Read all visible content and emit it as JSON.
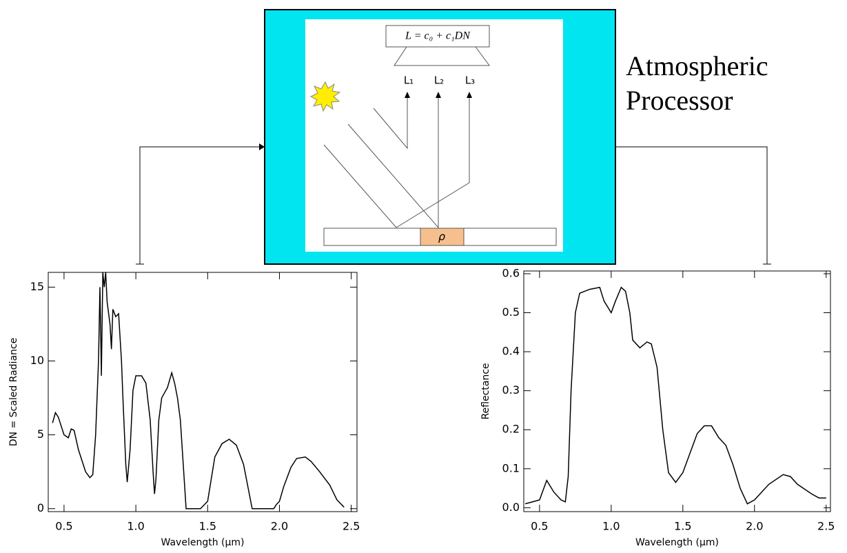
{
  "diagram": {
    "title_lines": [
      "Atmospheric",
      "Processor"
    ],
    "equation": "L = c₀ + c₁DN",
    "radiance_labels": [
      "L₁",
      "L₂",
      "L₃"
    ],
    "surface_label": "ρ"
  },
  "chart_data": [
    {
      "type": "line",
      "x_label": "Wavelength (μm)",
      "y_label": "DN = Scaled Radiance",
      "color": "#000000",
      "x": [
        0.42,
        0.44,
        0.46,
        0.5,
        0.53,
        0.55,
        0.57,
        0.6,
        0.65,
        0.68,
        0.7,
        0.72,
        0.74,
        0.75,
        0.76,
        0.77,
        0.78,
        0.79,
        0.8,
        0.82,
        0.83,
        0.84,
        0.86,
        0.88,
        0.9,
        0.91,
        0.93,
        0.94,
        0.96,
        0.98,
        1.0,
        1.04,
        1.07,
        1.1,
        1.12,
        1.13,
        1.14,
        1.16,
        1.18,
        1.22,
        1.25,
        1.27,
        1.29,
        1.31,
        1.33,
        1.35,
        1.37,
        1.45,
        1.5,
        1.55,
        1.6,
        1.65,
        1.7,
        1.75,
        1.78,
        1.81,
        1.96,
        1.98,
        2.0,
        2.03,
        2.08,
        2.12,
        2.18,
        2.22,
        2.28,
        2.35,
        2.4,
        2.45
      ],
      "values": [
        5.8,
        6.5,
        6.2,
        5.0,
        4.8,
        5.4,
        5.3,
        4.0,
        2.5,
        2.1,
        2.3,
        5,
        10,
        15,
        9,
        16,
        15,
        16,
        14,
        12.5,
        10.8,
        13.5,
        13,
        13.2,
        10,
        7.5,
        3,
        1.8,
        4,
        8,
        9.0,
        9.0,
        8.5,
        6,
        2.5,
        1.0,
        2,
        6,
        7.5,
        8.2,
        9.2,
        8.5,
        7.5,
        6,
        3,
        0,
        0,
        0,
        0.5,
        3.5,
        4.4,
        4.7,
        4.3,
        3.0,
        1.5,
        0,
        0,
        0.3,
        0.5,
        1.5,
        2.8,
        3.4,
        3.5,
        3.2,
        2.5,
        1.6,
        0.6,
        0.1
      ],
      "xlim": [
        0.39,
        2.54
      ],
      "ylim": [
        -0.2,
        16
      ],
      "xticks": [
        0.5,
        {
          "value": 1,
          "label": "1.0"
        },
        1.5,
        {
          "value": 2,
          "label": "2.0"
        },
        2.5
      ],
      "yticks": [
        0,
        5,
        10,
        15
      ]
    },
    {
      "type": "line",
      "x_label": "Wavelength (μm)",
      "y_label": "Reflectance",
      "color": "#000000",
      "x": [
        0.4,
        0.45,
        0.5,
        0.55,
        0.6,
        0.65,
        0.68,
        0.7,
        0.72,
        0.75,
        0.78,
        0.85,
        0.92,
        0.95,
        1.0,
        1.03,
        1.07,
        1.1,
        1.13,
        1.15,
        1.2,
        1.25,
        1.28,
        1.32,
        1.36,
        1.4,
        1.45,
        1.5,
        1.55,
        1.6,
        1.65,
        1.7,
        1.75,
        1.8,
        1.85,
        1.9,
        1.95,
        2.0,
        2.1,
        2.2,
        2.25,
        2.3,
        2.4,
        2.45,
        2.5
      ],
      "values": [
        0.01,
        0.015,
        0.02,
        0.07,
        0.04,
        0.02,
        0.015,
        0.08,
        0.3,
        0.5,
        0.55,
        0.56,
        0.565,
        0.53,
        0.5,
        0.53,
        0.565,
        0.555,
        0.5,
        0.43,
        0.41,
        0.425,
        0.42,
        0.36,
        0.2,
        0.09,
        0.065,
        0.09,
        0.14,
        0.19,
        0.21,
        0.21,
        0.18,
        0.16,
        0.11,
        0.05,
        0.01,
        0.02,
        0.06,
        0.085,
        0.08,
        0.06,
        0.035,
        0.025,
        0.025
      ],
      "xlim": [
        0.39,
        2.53
      ],
      "ylim": [
        -0.01,
        0.607
      ],
      "xticks": [
        0.5,
        {
          "value": 1,
          "label": "1.0"
        },
        1.5,
        {
          "value": 2,
          "label": "2.0"
        },
        2.5
      ],
      "yticks": [
        {
          "value": 0,
          "label": "0.0"
        },
        0.1,
        0.2,
        0.3,
        0.4,
        0.5,
        0.6
      ]
    }
  ]
}
